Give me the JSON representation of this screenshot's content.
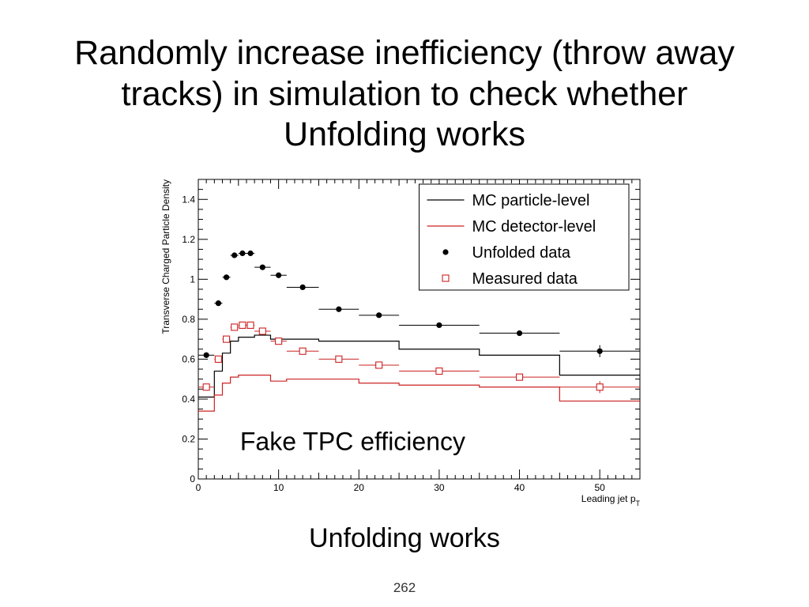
{
  "slide": {
    "title": "Randomly increase inefficiency (throw away tracks) in simulation to check whether Unfolding works",
    "subtitle": "Unfolding works",
    "page_number": "262"
  },
  "chart_data": {
    "type": "line",
    "ylabel": "Transverse Charged Particle Density",
    "xlabel_main": "Leading jet p",
    "xlabel_sub": "T",
    "annotation": "Fake TPC efficiency",
    "xlim": [
      0,
      55
    ],
    "ylim": [
      0,
      1.5
    ],
    "x_ticks": [
      0,
      10,
      20,
      30,
      40,
      50
    ],
    "y_ticks": [
      0,
      0.2,
      0.4,
      0.6,
      0.8,
      1,
      1.2,
      1.4
    ],
    "y_tick_labels": [
      "0",
      "0.2",
      "0.4",
      "0.6",
      "0.8",
      "1",
      "1.2",
      "1.4"
    ],
    "legend_position": "top-right",
    "colors": {
      "black": "#000000",
      "red": "#cc2222"
    },
    "bin_edges": [
      0,
      2,
      3,
      4,
      5,
      6,
      7,
      9,
      11,
      15,
      20,
      25,
      35,
      45,
      55
    ],
    "series": [
      {
        "name": "MC particle-level",
        "style": "histogram",
        "color": "#000000",
        "values": [
          0.41,
          0.54,
          0.63,
          0.69,
          0.71,
          0.71,
          0.72,
          0.7,
          0.7,
          0.69,
          0.69,
          0.65,
          0.62,
          0.52
        ]
      },
      {
        "name": "MC detector-level",
        "style": "histogram",
        "color": "#cc2222",
        "values": [
          0.34,
          0.42,
          0.48,
          0.51,
          0.52,
          0.52,
          0.52,
          0.49,
          0.5,
          0.5,
          0.48,
          0.47,
          0.46,
          0.39
        ]
      },
      {
        "name": "Unfolded data",
        "style": "filled-circle",
        "color": "#000000",
        "values": [
          0.62,
          0.88,
          1.01,
          1.12,
          1.13,
          1.13,
          1.06,
          1.02,
          0.96,
          0.85,
          0.82,
          0.77,
          0.73,
          0.64
        ]
      },
      {
        "name": "Measured data",
        "style": "open-square",
        "color": "#cc2222",
        "values": [
          0.46,
          0.6,
          0.7,
          0.76,
          0.77,
          0.77,
          0.74,
          0.69,
          0.64,
          0.6,
          0.57,
          0.54,
          0.51,
          0.46
        ]
      }
    ]
  }
}
